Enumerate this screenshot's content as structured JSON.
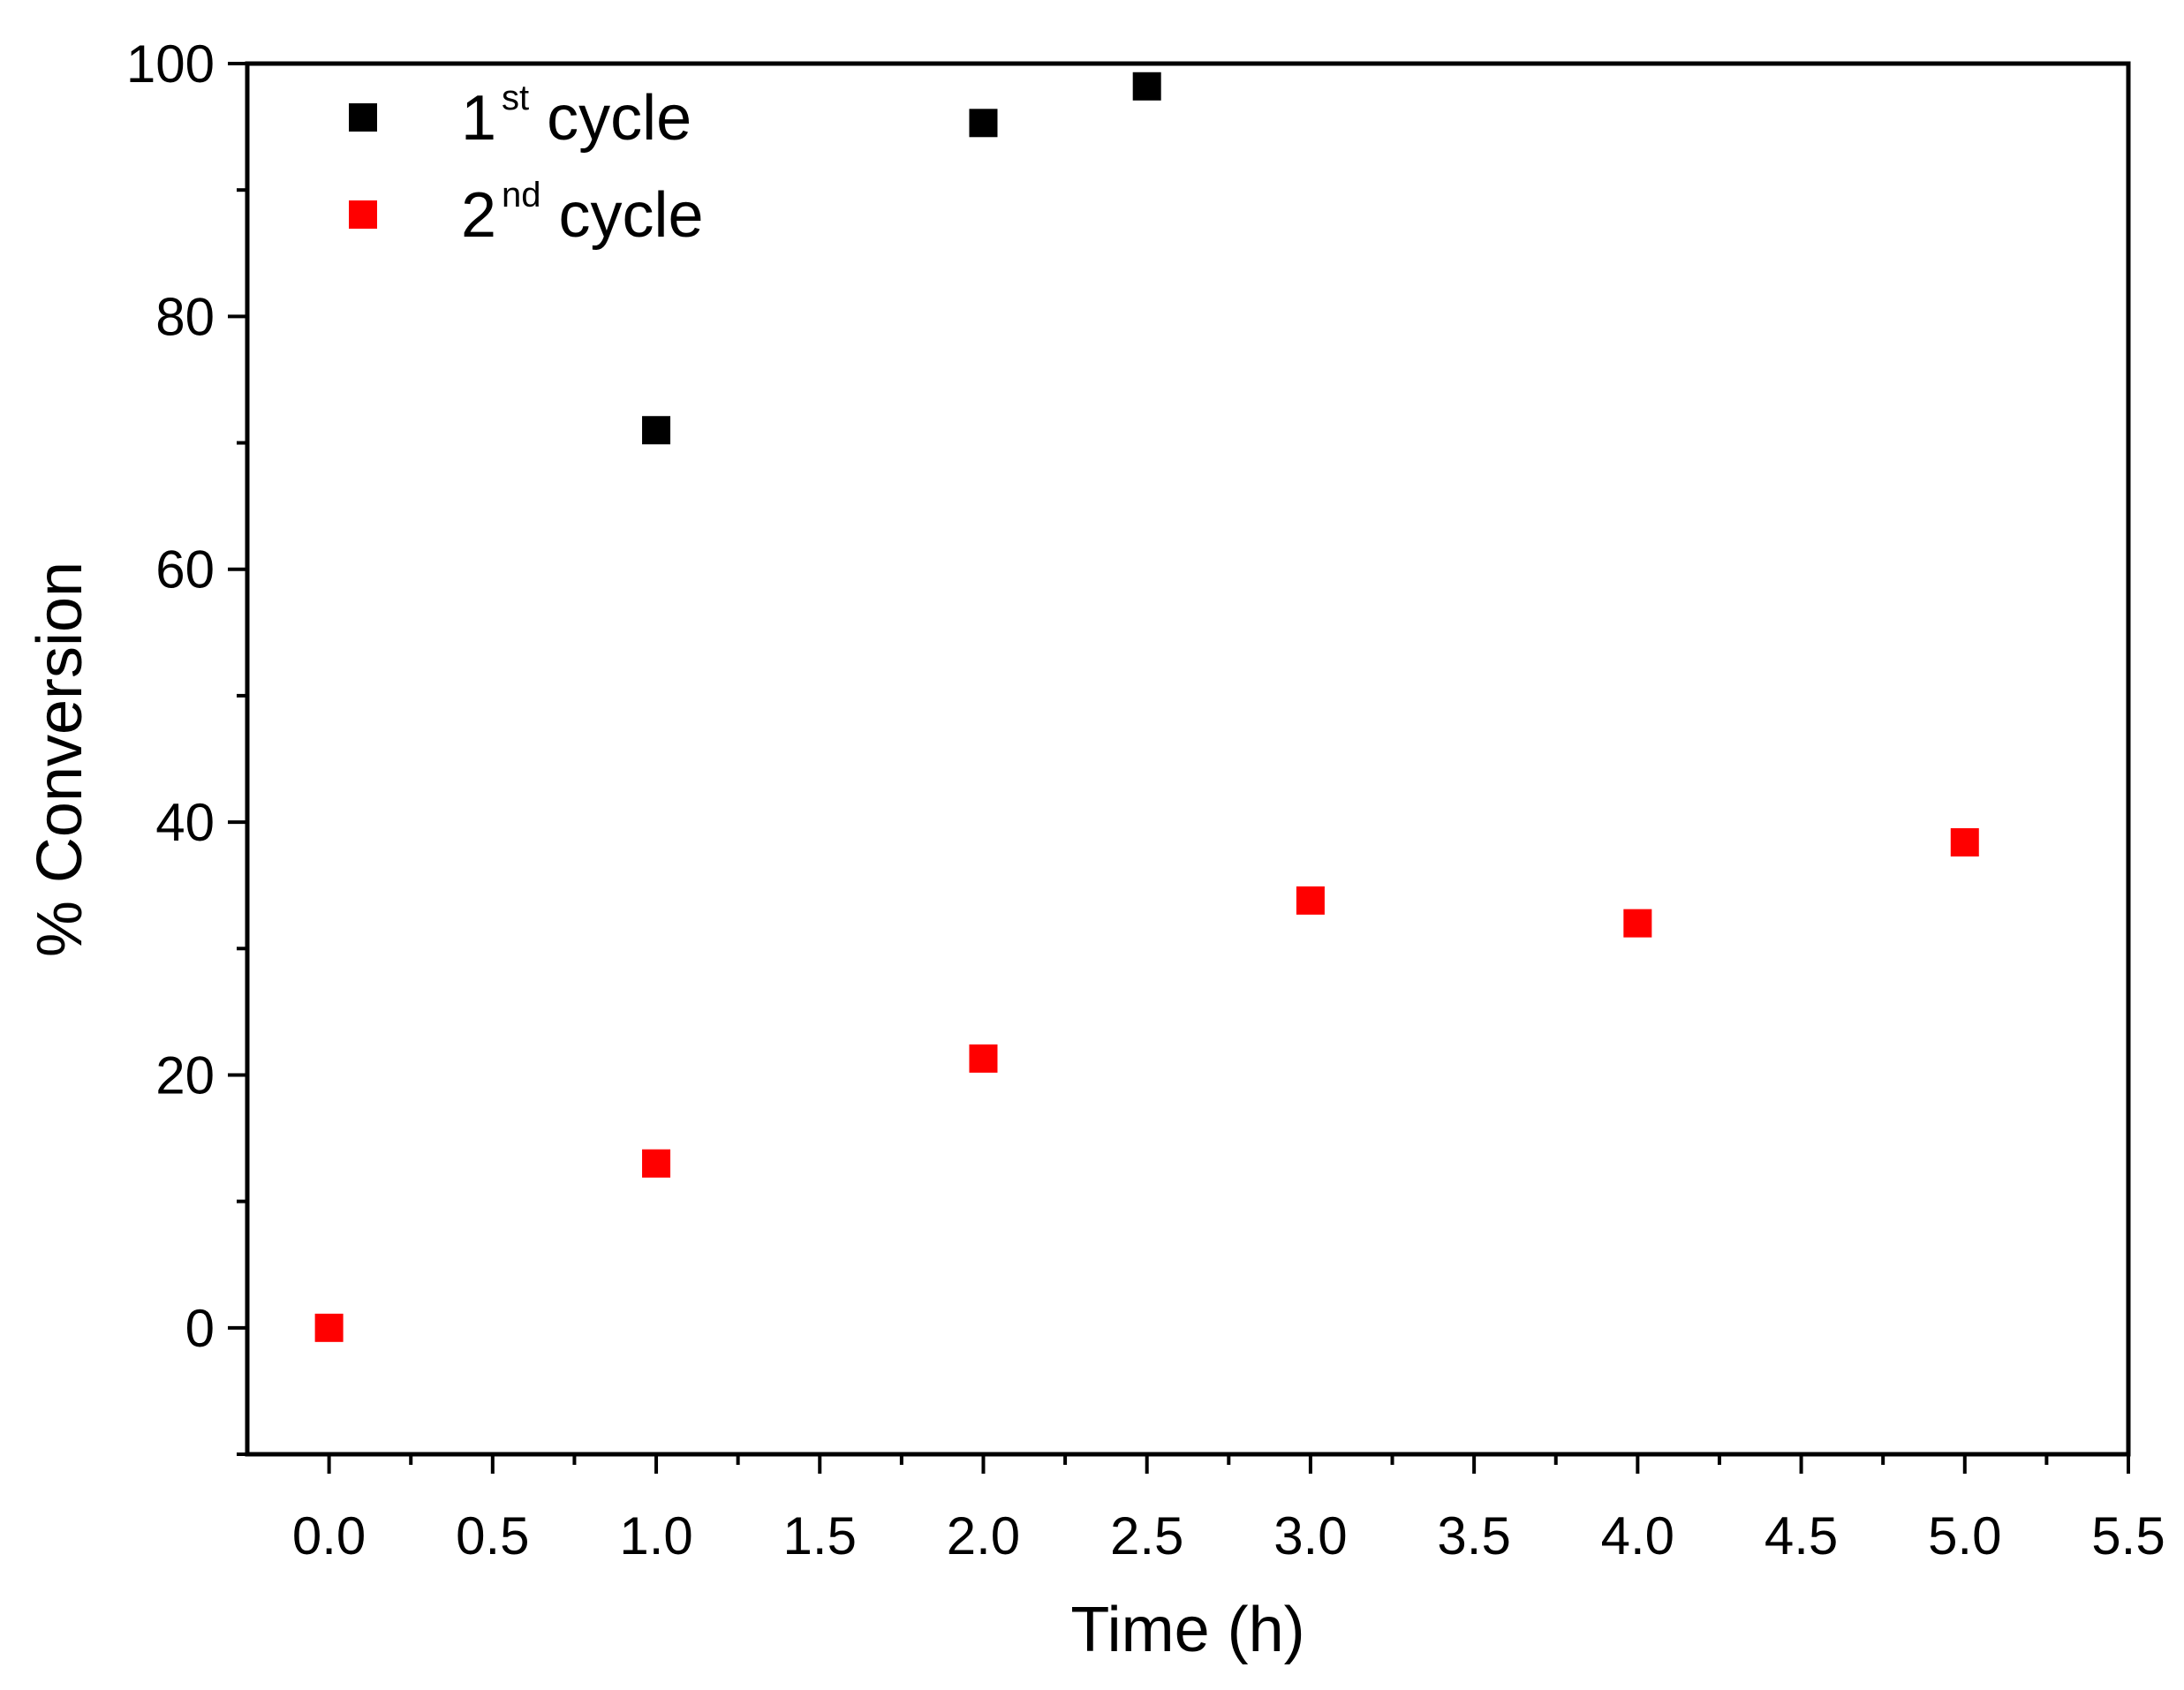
{
  "chart_data": {
    "type": "scatter",
    "title": "",
    "xlabel": "Time (h)",
    "ylabel": "% Conversion",
    "xlim": [
      -0.25,
      5.5
    ],
    "ylim": [
      -10,
      100
    ],
    "x_ticks": [
      0.0,
      0.5,
      1.0,
      1.5,
      2.0,
      2.5,
      3.0,
      3.5,
      4.0,
      4.5,
      5.0,
      5.5
    ],
    "x_tick_labels": [
      "0.0",
      "0.5",
      "1.0",
      "1.5",
      "2.0",
      "2.5",
      "3.0",
      "3.5",
      "4.0",
      "4.5",
      "5.0",
      "5.5"
    ],
    "y_ticks": [
      0,
      20,
      40,
      60,
      80,
      100
    ],
    "y_tick_labels": [
      "0",
      "20",
      "40",
      "60",
      "80",
      "100"
    ],
    "grid": false,
    "legend_position": "top-left",
    "series": [
      {
        "name": "1st cycle",
        "label_main": "1",
        "label_sup": "st",
        "label_rest": " cycle",
        "color": "#000000",
        "marker": "square",
        "x": [
          1.0,
          2.0,
          2.5
        ],
        "y": [
          71,
          95.3,
          98.2
        ]
      },
      {
        "name": "2nd cycle",
        "label_main": "2",
        "label_sup": "nd",
        "label_rest": " cycle",
        "color": "#ff0000",
        "marker": "square",
        "x": [
          0.0,
          1.0,
          2.0,
          3.0,
          4.0,
          5.0
        ],
        "y": [
          0,
          13,
          21.3,
          33.8,
          32,
          38.4
        ]
      }
    ]
  }
}
